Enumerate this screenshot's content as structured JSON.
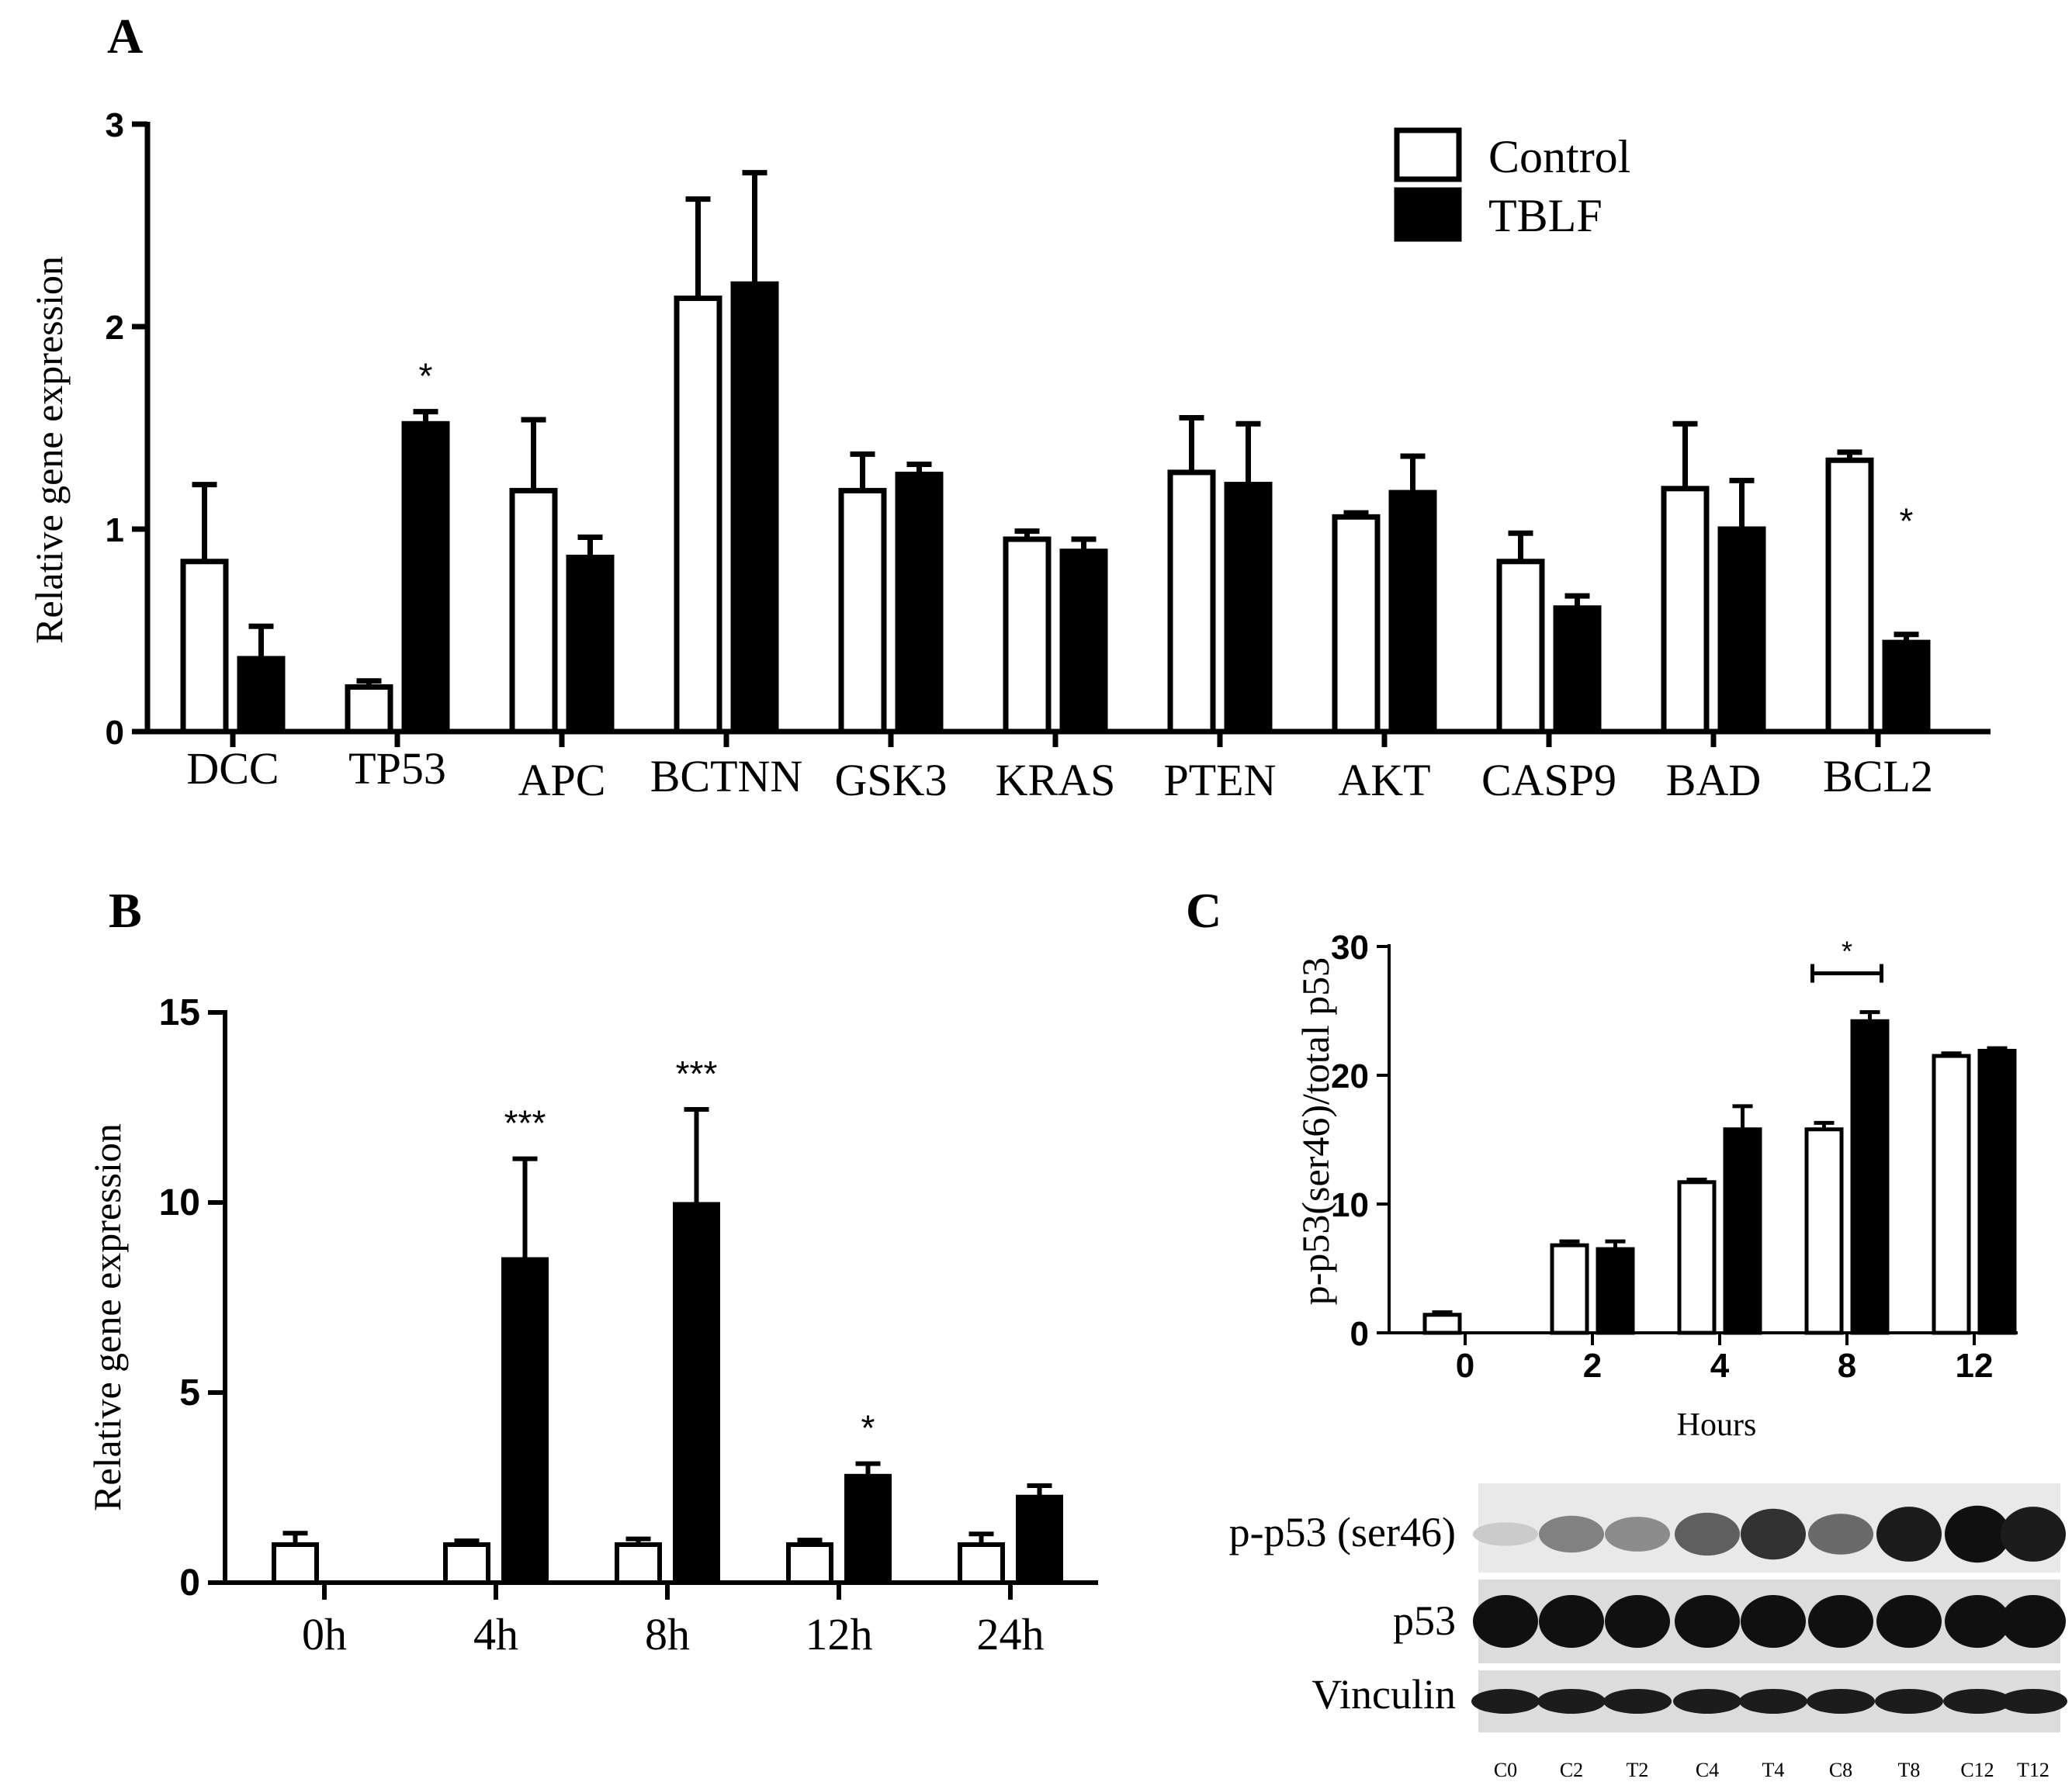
{
  "panels": {
    "a": {
      "letter": "A"
    },
    "b": {
      "letter": "B"
    },
    "c": {
      "letter": "C"
    }
  },
  "colors": {
    "control": "#ffffff",
    "tblf": "#000000",
    "outline": "#000000"
  },
  "chart_data": [
    {
      "id": "A",
      "type": "bar",
      "ylabel": "Relative gene expression",
      "xlabel": "",
      "ylim": [
        0,
        3
      ],
      "yticks": [
        0,
        1,
        2,
        3
      ],
      "legend": [
        "Control",
        "TBLF"
      ],
      "legend_position": "top-right",
      "categories": [
        "DCC",
        "TP53",
        "APC",
        "BCTNN",
        "GSK3",
        "KRAS",
        "PTEN",
        "AKT",
        "CASP9",
        "BAD",
        "BCL2"
      ],
      "series": [
        {
          "name": "Control",
          "values": [
            0.84,
            0.22,
            1.19,
            2.14,
            1.19,
            0.95,
            1.28,
            1.06,
            0.84,
            1.2,
            1.34
          ],
          "errors": [
            0.38,
            0.03,
            0.35,
            0.49,
            0.18,
            0.04,
            0.27,
            0.02,
            0.14,
            0.32,
            0.04
          ]
        },
        {
          "name": "TBLF",
          "values": [
            0.36,
            1.52,
            0.86,
            2.21,
            1.27,
            0.89,
            1.22,
            1.18,
            0.61,
            1.0,
            0.44
          ],
          "errors": [
            0.16,
            0.06,
            0.1,
            0.55,
            0.05,
            0.06,
            0.3,
            0.18,
            0.06,
            0.24,
            0.04
          ]
        }
      ],
      "annotations": [
        {
          "category": "TP53",
          "series": "TBLF",
          "text": "*"
        },
        {
          "category": "BCL2",
          "series": "TBLF",
          "text": "*"
        }
      ]
    },
    {
      "id": "B",
      "type": "bar",
      "ylabel": "Relative gene expression",
      "xlabel": "",
      "ylim": [
        0,
        15
      ],
      "yticks": [
        0,
        5,
        10,
        15
      ],
      "categories": [
        "0h",
        "4h",
        "8h",
        "12h",
        "24h"
      ],
      "series": [
        {
          "name": "Control",
          "values": [
            1.0,
            1.0,
            1.0,
            1.0,
            1.0
          ],
          "errors": [
            0.3,
            0.1,
            0.15,
            0.12,
            0.28
          ]
        },
        {
          "name": "TBLF",
          "values": [
            null,
            8.5,
            9.95,
            2.8,
            2.25
          ],
          "errors": [
            null,
            2.65,
            2.5,
            0.33,
            0.3
          ]
        }
      ],
      "annotations": [
        {
          "category": "4h",
          "series": "TBLF",
          "text": "***"
        },
        {
          "category": "8h",
          "series": "TBLF",
          "text": "***"
        },
        {
          "category": "12h",
          "series": "TBLF",
          "text": "*"
        }
      ]
    },
    {
      "id": "C",
      "type": "bar",
      "ylabel": "p-p53(ser46)/total p53",
      "xlabel": "Hours",
      "ylim": [
        0,
        30
      ],
      "yticks": [
        0,
        10,
        20,
        30
      ],
      "categories": [
        "0",
        "2",
        "4",
        "8",
        "12"
      ],
      "series": [
        {
          "name": "Control",
          "values": [
            1.4,
            6.8,
            11.7,
            15.8,
            21.5
          ],
          "errors": [
            0.2,
            0.3,
            0.2,
            0.5,
            0.2
          ]
        },
        {
          "name": "TBLF",
          "values": [
            null,
            6.5,
            15.8,
            24.2,
            21.9
          ],
          "errors": [
            null,
            0.6,
            1.8,
            0.7,
            0.2
          ]
        }
      ],
      "annotations": [
        {
          "category": "8",
          "series": "both",
          "text": "*"
        }
      ]
    }
  ],
  "blot": {
    "rows": [
      {
        "label": "p-p53 (ser46)",
        "intensities": [
          0.12,
          0.45,
          0.4,
          0.6,
          0.8,
          0.55,
          0.9,
          0.95,
          0.9
        ]
      },
      {
        "label": "p53",
        "intensities": [
          0.95,
          0.95,
          0.95,
          0.95,
          0.95,
          0.95,
          0.95,
          0.95,
          0.95
        ]
      },
      {
        "label": "Vinculin",
        "intensities": [
          0.9,
          0.9,
          0.9,
          0.9,
          0.9,
          0.9,
          0.9,
          0.9,
          0.9
        ]
      }
    ],
    "lanes": [
      "C0",
      "C2",
      "T2",
      "C4",
      "T4",
      "C8",
      "T8",
      "C12",
      "T12"
    ]
  }
}
